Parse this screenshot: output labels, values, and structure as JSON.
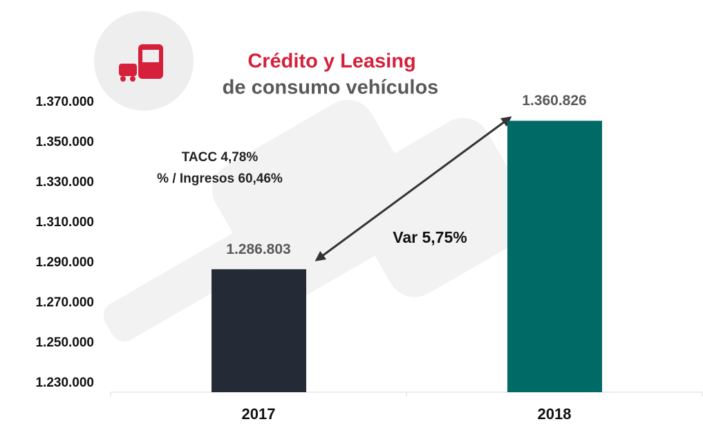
{
  "chart_data": {
    "type": "bar",
    "title": "Crédito y Leasing",
    "subtitle": "de consumo vehículos",
    "categories": [
      "2017",
      "2018"
    ],
    "values": [
      1286803,
      1360826
    ],
    "value_labels": [
      "1.286.803",
      "1.360.826"
    ],
    "colors": [
      "#252b36",
      "#006a66"
    ],
    "ylim": [
      1225500,
      1370000
    ],
    "yticks": [
      {
        "value": 1230000,
        "label": "1.230.000"
      },
      {
        "value": 1250000,
        "label": "1.250.000"
      },
      {
        "value": 1270000,
        "label": "1.270.000"
      },
      {
        "value": 1290000,
        "label": "1.290.000"
      },
      {
        "value": 1310000,
        "label": "1.310.000"
      },
      {
        "value": 1330000,
        "label": "1.330.000"
      },
      {
        "value": 1350000,
        "label": "1.350.000"
      },
      {
        "value": 1370000,
        "label": "1.370.000"
      }
    ],
    "grid": false,
    "annotations": [
      "TACC 4,78%",
      "% / Ingresos 60,46%",
      "Var 5,75%"
    ]
  }
}
